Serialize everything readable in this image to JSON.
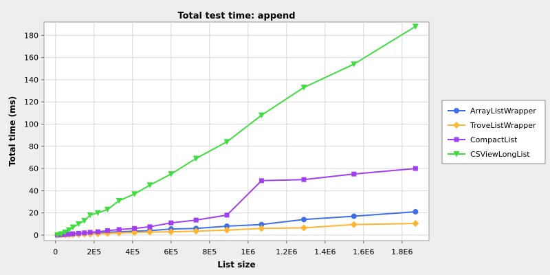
{
  "chart_data": {
    "type": "line",
    "title": "Total test time: append",
    "xlabel": "List size",
    "ylabel": "Total time (ms)",
    "xlim": [
      -60000,
      1940000
    ],
    "ylim": [
      -5,
      192
    ],
    "xticks": [
      0,
      200000,
      400000,
      600000,
      800000,
      1000000,
      1200000,
      1400000,
      1600000,
      1800000
    ],
    "xtick_labels": [
      "0",
      "2E5",
      "4E5",
      "6E5",
      "8E5",
      "1E6",
      "1.2E6",
      "1.4E6",
      "1.6E6",
      "1.8E6"
    ],
    "yticks": [
      0,
      20,
      40,
      60,
      80,
      100,
      120,
      140,
      160,
      180
    ],
    "ytick_labels": [
      "0",
      "20",
      "40",
      "60",
      "80",
      "100",
      "120",
      "140",
      "160",
      "180"
    ],
    "grid": true,
    "legend": "right",
    "series": [
      {
        "name": "ArrayListWrapper",
        "color": "#3f6fe8",
        "marker": "circle",
        "x": [
          10000,
          30000,
          50000,
          70000,
          90000,
          120000,
          150000,
          180000,
          220000,
          270000,
          330000,
          410000,
          490000,
          600000,
          730000,
          890000,
          1070000,
          1290000,
          1550000,
          1870000
        ],
        "y": [
          0,
          0.2,
          0.3,
          0.5,
          0.7,
          1,
          1.2,
          1.5,
          2,
          2.5,
          3,
          3.5,
          4,
          5.5,
          6,
          8,
          9.5,
          14,
          17,
          21
        ]
      },
      {
        "name": "TroveListWrapper",
        "color": "#ffb531",
        "marker": "diamond",
        "x": [
          10000,
          30000,
          50000,
          70000,
          90000,
          120000,
          150000,
          180000,
          220000,
          270000,
          330000,
          410000,
          490000,
          600000,
          730000,
          890000,
          1070000,
          1290000,
          1550000,
          1870000
        ],
        "y": [
          0,
          0.1,
          0.2,
          0.3,
          0.4,
          0.6,
          0.8,
          1,
          1.2,
          1.5,
          2,
          2.3,
          2.7,
          3,
          3.5,
          4.5,
          6,
          6.5,
          9.5,
          10.5
        ]
      },
      {
        "name": "CompactList",
        "color": "#9f3ff0",
        "marker": "square",
        "x": [
          10000,
          30000,
          50000,
          70000,
          90000,
          120000,
          150000,
          180000,
          220000,
          270000,
          330000,
          410000,
          490000,
          600000,
          730000,
          890000,
          1070000,
          1290000,
          1550000,
          1870000
        ],
        "y": [
          0,
          0.3,
          0.6,
          0.9,
          1.2,
          1.6,
          2,
          2.5,
          3,
          4,
          5,
          6,
          7.5,
          11,
          13.5,
          18,
          49,
          50,
          55,
          60
        ]
      },
      {
        "name": "CSViewLongList",
        "color": "#3fdc3f",
        "marker": "triangle-down",
        "x": [
          10000,
          30000,
          50000,
          70000,
          90000,
          120000,
          150000,
          180000,
          220000,
          270000,
          330000,
          410000,
          490000,
          600000,
          730000,
          890000,
          1070000,
          1290000,
          1550000,
          1870000
        ],
        "y": [
          0,
          1,
          2.5,
          4.5,
          7,
          10,
          13,
          18,
          20,
          23,
          31,
          37,
          45,
          55,
          69,
          84,
          108,
          133,
          154,
          188
        ]
      }
    ]
  }
}
